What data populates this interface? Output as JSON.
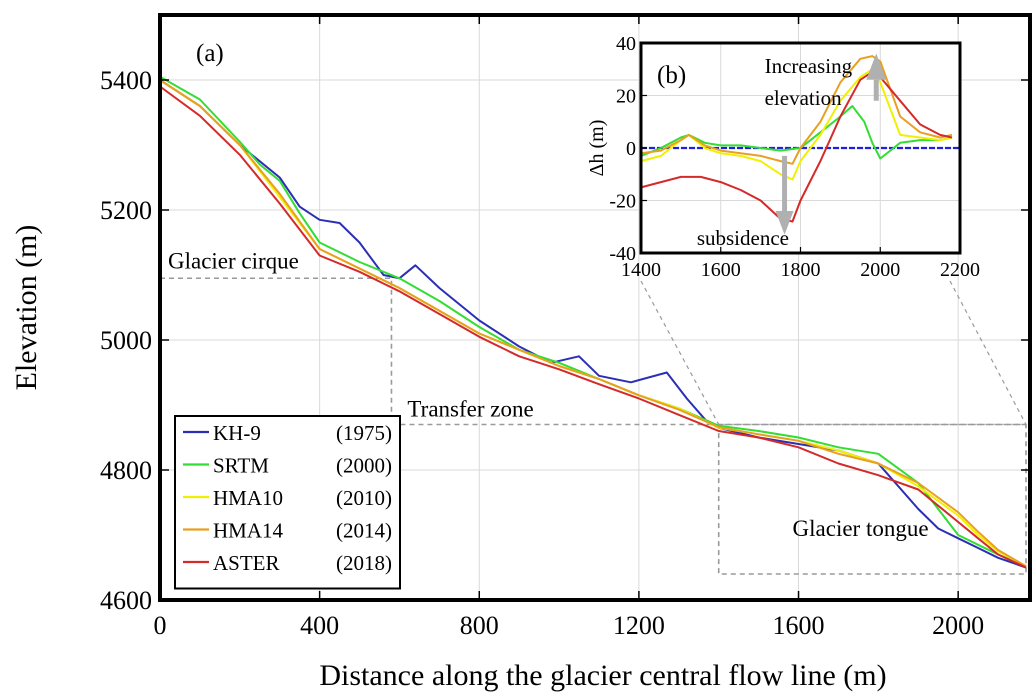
{
  "chart_data": [
    {
      "id": "main",
      "type": "line",
      "panel_label": "(a)",
      "xlabel": "Distance along the glacier central flow line (m)",
      "ylabel": "Elevation (m)",
      "xlim": [
        0,
        2180
      ],
      "ylim": [
        4600,
        5500
      ],
      "x_ticks": [
        0,
        400,
        800,
        1200,
        1600,
        2000
      ],
      "y_ticks": [
        4600,
        4800,
        5000,
        5200,
        5400
      ],
      "grid": true,
      "legend_position": "bottom-left",
      "zones": [
        {
          "label": "Glacier cirque"
        },
        {
          "label": "Transfer zone"
        },
        {
          "label": "Glacier tongue"
        }
      ],
      "series": [
        {
          "name": "KH-9",
          "year": "(1975)",
          "color": "#2b2fb5",
          "x": [
            0,
            100,
            200,
            300,
            350,
            400,
            450,
            500,
            560,
            600,
            640,
            700,
            800,
            900,
            980,
            1050,
            1100,
            1180,
            1270,
            1320,
            1370,
            1400,
            1500,
            1600,
            1700,
            1800,
            1900,
            1950,
            2000,
            2050,
            2100,
            2170
          ],
          "y": [
            5400,
            5360,
            5300,
            5250,
            5205,
            5185,
            5180,
            5150,
            5100,
            5095,
            5115,
            5080,
            5030,
            4990,
            4965,
            4975,
            4945,
            4935,
            4950,
            4910,
            4875,
            4865,
            4850,
            4840,
            4830,
            4810,
            4740,
            4710,
            4695,
            4680,
            4665,
            4650
          ]
        },
        {
          "name": "SRTM",
          "year": "(2000)",
          "color": "#33dd33",
          "x": [
            0,
            100,
            200,
            250,
            300,
            350,
            400,
            500,
            600,
            700,
            800,
            900,
            1000,
            1100,
            1200,
            1300,
            1400,
            1500,
            1600,
            1700,
            1800,
            1900,
            1950,
            2000,
            2050,
            2100,
            2170
          ],
          "y": [
            5405,
            5370,
            5305,
            5270,
            5245,
            5195,
            5150,
            5120,
            5095,
            5060,
            5020,
            4985,
            4965,
            4940,
            4915,
            4895,
            4868,
            4860,
            4850,
            4835,
            4825,
            4780,
            4740,
            4700,
            4685,
            4670,
            4652
          ]
        },
        {
          "name": "HMA10",
          "year": "(2010)",
          "color": "#f0f000",
          "x": [
            0,
            100,
            200,
            300,
            400,
            500,
            600,
            700,
            800,
            900,
            1000,
            1100,
            1200,
            1300,
            1400,
            1500,
            1600,
            1700,
            1800,
            1900,
            2000,
            2050,
            2100,
            2170
          ],
          "y": [
            5400,
            5360,
            5300,
            5220,
            5140,
            5110,
            5080,
            5045,
            5010,
            4985,
            4960,
            4940,
            4915,
            4895,
            4865,
            4855,
            4845,
            4830,
            4810,
            4775,
            4730,
            4700,
            4675,
            4652
          ]
        },
        {
          "name": "HMA14",
          "year": "(2014)",
          "color": "#e8a020",
          "x": [
            0,
            100,
            200,
            300,
            400,
            500,
            600,
            700,
            800,
            900,
            1000,
            1100,
            1200,
            1300,
            1400,
            1500,
            1600,
            1700,
            1800,
            1900,
            2000,
            2050,
            2100,
            2170
          ],
          "y": [
            5400,
            5360,
            5300,
            5225,
            5140,
            5110,
            5080,
            5045,
            5010,
            4985,
            4960,
            4940,
            4915,
            4893,
            4866,
            4855,
            4845,
            4825,
            4810,
            4780,
            4735,
            4705,
            4677,
            4652
          ]
        },
        {
          "name": "ASTER",
          "year": "(2018)",
          "color": "#d42a2a",
          "x": [
            0,
            100,
            200,
            300,
            400,
            500,
            600,
            700,
            800,
            900,
            1000,
            1100,
            1200,
            1300,
            1400,
            1500,
            1600,
            1700,
            1800,
            1900,
            2000,
            2050,
            2100,
            2170
          ],
          "y": [
            5390,
            5345,
            5285,
            5210,
            5130,
            5105,
            5075,
            5040,
            5005,
            4975,
            4955,
            4932,
            4910,
            4885,
            4860,
            4850,
            4835,
            4810,
            4792,
            4770,
            4720,
            4695,
            4670,
            4650
          ]
        }
      ]
    },
    {
      "id": "inset",
      "type": "line",
      "panel_label": "(b)",
      "xlabel": "",
      "ylabel": "Δh (m)",
      "xlim": [
        1400,
        2200
      ],
      "ylim": [
        -40,
        40
      ],
      "x_ticks": [
        1400,
        1600,
        1800,
        2000,
        2200
      ],
      "y_ticks": [
        -40,
        -20,
        0,
        20,
        40
      ],
      "grid": true,
      "annotations": [
        "Increasing",
        "elevation",
        "subsidence"
      ],
      "zero_line_color": "#2020e0",
      "series": [
        {
          "name": "SRTM",
          "color": "#33dd33",
          "x": [
            1400,
            1450,
            1500,
            1520,
            1560,
            1600,
            1650,
            1700,
            1750,
            1800,
            1850,
            1900,
            1930,
            1960,
            1980,
            2000,
            2050,
            2100,
            2150,
            2180
          ],
          "y": [
            -3,
            0,
            4,
            5,
            2,
            1,
            1,
            0,
            -1,
            0,
            6,
            12,
            16,
            10,
            2,
            -4,
            2,
            3,
            3,
            4
          ]
        },
        {
          "name": "HMA10",
          "color": "#f0f000",
          "x": [
            1400,
            1450,
            1500,
            1520,
            1560,
            1600,
            1650,
            1700,
            1750,
            1780,
            1800,
            1850,
            1900,
            1950,
            1980,
            2000,
            2050,
            2100,
            2150,
            2180
          ],
          "y": [
            -5,
            -3,
            3,
            5,
            0,
            -2,
            -3,
            -5,
            -10,
            -12,
            -5,
            5,
            18,
            27,
            30,
            25,
            5,
            4,
            3,
            4
          ]
        },
        {
          "name": "HMA14",
          "color": "#e8a020",
          "x": [
            1400,
            1450,
            1500,
            1520,
            1560,
            1600,
            1650,
            1700,
            1750,
            1780,
            1800,
            1850,
            1900,
            1950,
            1980,
            2000,
            2050,
            2100,
            2150,
            2180
          ],
          "y": [
            -2,
            -1,
            3,
            5,
            1,
            -1,
            -2,
            -3,
            -5,
            -6,
            0,
            10,
            25,
            34,
            35,
            33,
            12,
            6,
            4,
            5
          ]
        },
        {
          "name": "ASTER",
          "color": "#d42a2a",
          "x": [
            1400,
            1450,
            1500,
            1550,
            1600,
            1650,
            1700,
            1750,
            1780,
            1800,
            1850,
            1900,
            1950,
            1980,
            2000,
            2050,
            2100,
            2150,
            2180
          ],
          "y": [
            -15,
            -13,
            -11,
            -11,
            -13,
            -16,
            -20,
            -27,
            -28,
            -20,
            -5,
            12,
            26,
            29,
            27,
            18,
            9,
            5,
            4
          ]
        }
      ]
    }
  ]
}
